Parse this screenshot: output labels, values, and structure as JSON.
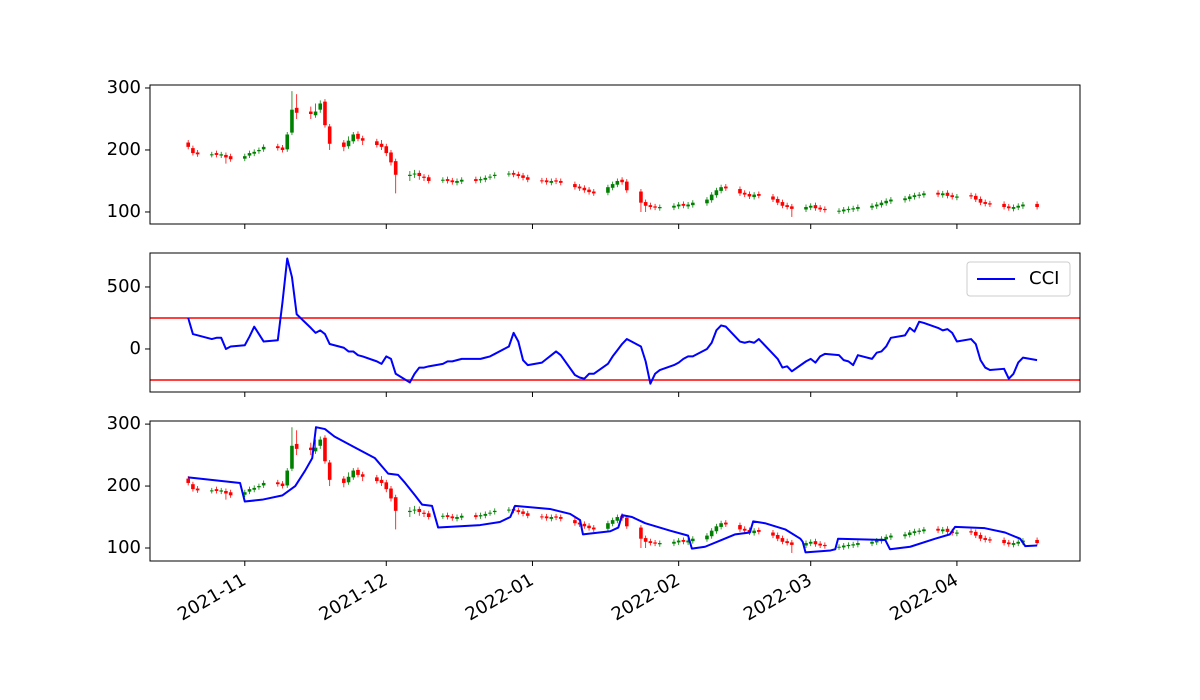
{
  "chart_data": [
    {
      "type": "candlestick",
      "up_color": "green",
      "down_color": "red",
      "ylim": [
        80.6,
        304.8
      ],
      "yticks": [
        100,
        200,
        300
      ],
      "x": [
        19,
        20,
        21,
        24,
        25,
        26,
        27,
        28,
        31,
        32,
        33,
        34,
        35,
        38,
        39,
        40,
        41,
        42,
        45,
        46,
        47,
        48,
        49,
        52,
        53,
        54,
        55,
        56,
        59,
        60,
        61,
        62,
        63,
        66,
        67,
        68,
        69,
        70,
        73,
        74,
        75,
        76,
        77,
        80,
        81,
        82,
        83,
        84,
        87,
        88,
        89,
        90,
        91,
        94,
        95,
        96,
        97,
        98,
        101,
        102,
        103,
        104,
        105,
        108,
        109,
        110,
        111,
        112,
        115,
        116,
        117,
        118,
        119,
        122,
        123,
        124,
        125,
        126,
        129,
        130,
        131,
        132,
        133,
        136,
        137,
        138,
        139,
        140,
        143,
        144,
        145,
        146,
        147,
        150,
        151,
        152,
        153,
        154,
        157,
        158,
        159,
        160,
        161,
        164,
        165,
        166,
        167,
        168,
        171,
        172,
        173,
        174,
        175,
        178,
        179,
        180,
        181,
        182,
        185,
        186,
        187,
        188,
        189,
        192,
        193,
        194,
        195,
        196,
        199
      ],
      "open": [
        212,
        203,
        196,
        192,
        195,
        191,
        192,
        190,
        186,
        191,
        194,
        198,
        201,
        206,
        204,
        201,
        228,
        268,
        262,
        256,
        265,
        278,
        238,
        212,
        206,
        214,
        226,
        219,
        214,
        210,
        206,
        196,
        182,
        158,
        161,
        163,
        157,
        156,
        151,
        153,
        151,
        147,
        149,
        153,
        151,
        152,
        156,
        158,
        161,
        163,
        161,
        159,
        156,
        151,
        151,
        147,
        151,
        150,
        145,
        141,
        139,
        136,
        133,
        131,
        139,
        144,
        152,
        149,
        133,
        116,
        111,
        109,
        106,
        107,
        109,
        113,
        109,
        111,
        114,
        119,
        127,
        134,
        141,
        137,
        131,
        129,
        124,
        129,
        125,
        121,
        116,
        111,
        109,
        104,
        107,
        111,
        107,
        105,
        101,
        101,
        103,
        104,
        105,
        107,
        109,
        111,
        114,
        117,
        119,
        121,
        124,
        126,
        127,
        131,
        127,
        131,
        127,
        123,
        127,
        126,
        121,
        116,
        114,
        113,
        109,
        105,
        107,
        109,
        113
      ],
      "high": [
        216,
        207,
        200,
        197,
        199,
        197,
        196,
        194,
        194,
        199,
        201,
        204,
        209,
        210,
        208,
        229,
        295,
        290,
        270,
        275,
        280,
        282,
        242,
        216,
        222,
        229,
        230,
        223,
        218,
        216,
        210,
        200,
        186,
        166,
        168,
        167,
        161,
        160,
        156,
        157,
        155,
        154,
        156,
        157,
        157,
        159,
        161,
        164,
        166,
        167,
        165,
        163,
        160,
        155,
        155,
        154,
        155,
        154,
        149,
        145,
        143,
        140,
        137,
        144,
        149,
        154,
        156,
        153,
        137,
        120,
        115,
        113,
        112,
        114,
        116,
        117,
        116,
        119,
        124,
        132,
        139,
        144,
        145,
        141,
        135,
        133,
        132,
        133,
        129,
        125,
        120,
        115,
        113,
        112,
        114,
        115,
        111,
        109,
        106,
        108,
        109,
        110,
        112,
        114,
        116,
        119,
        122,
        124,
        126,
        129,
        131,
        132,
        134,
        135,
        134,
        135,
        131,
        129,
        131,
        130,
        125,
        120,
        118,
        117,
        113,
        112,
        114,
        116,
        117
      ],
      "low": [
        201,
        191,
        189,
        188,
        188,
        187,
        178,
        181,
        182,
        187,
        190,
        194,
        197,
        199,
        196,
        197,
        224,
        250,
        250,
        252,
        260,
        236,
        200,
        198,
        202,
        210,
        214,
        208,
        204,
        200,
        190,
        175,
        130,
        150,
        155,
        152,
        150,
        146,
        147,
        146,
        144,
        143,
        145,
        146,
        147,
        148,
        152,
        154,
        157,
        156,
        154,
        151,
        148,
        146,
        144,
        143,
        145,
        143,
        136,
        134,
        131,
        128,
        126,
        127,
        135,
        140,
        144,
        131,
        100,
        100,
        104,
        103,
        102,
        103,
        105,
        106,
        105,
        107,
        110,
        115,
        123,
        130,
        134,
        126,
        124,
        121,
        120,
        122,
        116,
        111,
        106,
        104,
        92,
        100,
        103,
        102,
        100,
        99,
        97,
        97,
        99,
        100,
        101,
        103,
        105,
        107,
        110,
        113,
        115,
        117,
        120,
        122,
        123,
        124,
        123,
        122,
        120,
        119,
        121,
        116,
        111,
        109,
        108,
        104,
        102,
        101,
        103,
        105,
        104
      ],
      "close": [
        205,
        195,
        193,
        193,
        192,
        193,
        188,
        185,
        190,
        195,
        197,
        200,
        205,
        203,
        200,
        225,
        265,
        260,
        258,
        262,
        275,
        240,
        210,
        205,
        215,
        225,
        218,
        215,
        208,
        205,
        195,
        180,
        160,
        160,
        162,
        158,
        155,
        150,
        152,
        150,
        148,
        150,
        152,
        150,
        153,
        155,
        157,
        160,
        162,
        160,
        158,
        155,
        152,
        150,
        148,
        150,
        149,
        147,
        140,
        138,
        135,
        132,
        130,
        140,
        145,
        150,
        148,
        135,
        115,
        110,
        108,
        107,
        108,
        110,
        112,
        110,
        112,
        115,
        120,
        128,
        135,
        140,
        138,
        130,
        128,
        125,
        128,
        126,
        120,
        115,
        110,
        108,
        105,
        108,
        110,
        106,
        104,
        103,
        102,
        104,
        105,
        106,
        108,
        110,
        112,
        115,
        118,
        120,
        122,
        125,
        127,
        128,
        130,
        128,
        130,
        126,
        124,
        125,
        125,
        120,
        115,
        113,
        112,
        108,
        106,
        108,
        110,
        112,
        108
      ]
    },
    {
      "type": "line",
      "ylim": [
        -347,
        774
      ],
      "yticks": [
        0,
        500
      ],
      "legend": "upper right",
      "hlines": [
        250,
        -250
      ],
      "hline_color": "red",
      "series": [
        {
          "name": "CCI",
          "color": "blue",
          "values": [
            250,
            120,
            110,
            80,
            90,
            90,
            0,
            20,
            30,
            100,
            180,
            120,
            60,
            70,
            380,
            730,
            580,
            280,
            170,
            130,
            150,
            120,
            40,
            10,
            -20,
            -20,
            -50,
            -60,
            -100,
            -120,
            -60,
            -80,
            -200,
            -270,
            -200,
            -150,
            -150,
            -140,
            -120,
            -100,
            -100,
            -90,
            -80,
            -80,
            -80,
            -70,
            -60,
            -40,
            20,
            130,
            60,
            -90,
            -130,
            -110,
            -80,
            -50,
            -20,
            -50,
            -210,
            -230,
            -240,
            -200,
            -200,
            -120,
            -60,
            -10,
            40,
            80,
            20,
            -100,
            -280,
            -200,
            -170,
            -130,
            -110,
            -80,
            -60,
            -60,
            0,
            50,
            150,
            190,
            180,
            60,
            50,
            60,
            50,
            80,
            -40,
            -80,
            -150,
            -140,
            -180,
            -100,
            -80,
            -110,
            -60,
            -40,
            -50,
            -90,
            -100,
            -130,
            -50,
            -80,
            -30,
            -20,
            20,
            90,
            110,
            170,
            140,
            220,
            210,
            170,
            150,
            160,
            130,
            60,
            80,
            40,
            -90,
            -150,
            -170,
            -160,
            -240,
            -200,
            -110,
            -70,
            -90
          ]
        }
      ]
    },
    {
      "type": "candlestick",
      "ylim": [
        79,
        305
      ],
      "yticks": [
        100,
        200,
        300
      ],
      "xlim": [
        10.9,
        208.1
      ],
      "xticks": [
        {
          "value": 31,
          "label": "2021-11"
        },
        {
          "value": 61,
          "label": "2021-12"
        },
        {
          "value": 92,
          "label": "2022-01"
        },
        {
          "value": 123,
          "label": "2022-02"
        },
        {
          "value": 151,
          "label": "2022-03"
        },
        {
          "value": 182,
          "label": "2022-04"
        }
      ],
      "series": [
        {
          "color": "blue",
          "x": [
            19,
            30,
            31,
            34.7,
            39,
            41.7,
            43.8,
            45.3,
            46.1,
            48,
            50,
            54.4,
            58.6,
            61.4,
            63.5,
            65,
            67.1,
            68.6,
            70.7,
            72,
            80.9,
            85.1,
            87.3,
            88.3,
            95.7,
            100,
            102.1,
            102.7,
            108.5,
            110.2,
            111,
            113.1,
            115.9,
            121.2,
            125,
            125.8,
            128.6,
            131.8,
            135,
            138.1,
            138.8,
            141.3,
            145.6,
            148.8,
            149.3,
            149.9,
            155.2,
            156.2,
            156.8,
            166.8,
            167.8,
            172.1,
            177.4,
            180.5,
            181.6,
            187.9,
            192.2,
            195.4,
            196.5,
            199
          ],
          "values": [
            214,
            205,
            175,
            178,
            185,
            200,
            225,
            245,
            295,
            292,
            280,
            262,
            245,
            220,
            218,
            205,
            185,
            170,
            168,
            133,
            137,
            142,
            150,
            168,
            163,
            155,
            145,
            122,
            127,
            133,
            153,
            150,
            140,
            128,
            120,
            99,
            102,
            112,
            122,
            125,
            143,
            140,
            130,
            115,
            110,
            93,
            96,
            98,
            115,
            113,
            98,
            102,
            115,
            122,
            134,
            132,
            125,
            115,
            103,
            104
          ]
        }
      ]
    }
  ]
}
